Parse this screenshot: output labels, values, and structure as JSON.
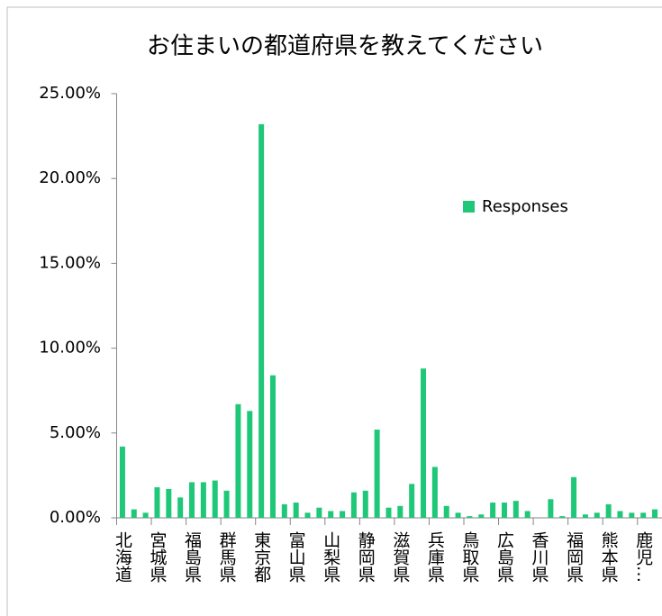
{
  "chart_data": {
    "type": "bar",
    "title": "お住まいの都道府県を教えてください",
    "categories": [
      "北海道",
      null,
      null,
      "宮城県",
      null,
      null,
      "福島県",
      null,
      null,
      "群馬県",
      null,
      null,
      "東京都",
      null,
      null,
      "富山県",
      null,
      null,
      "山梨県",
      null,
      null,
      "静岡県",
      null,
      null,
      "滋賀県",
      null,
      null,
      "兵庫県",
      null,
      null,
      "鳥取県",
      null,
      null,
      "広島県",
      null,
      null,
      "香川県",
      null,
      null,
      "福岡県",
      null,
      null,
      "熊本県",
      null,
      null,
      "鹿児…",
      null
    ],
    "series": [
      {
        "name": "Responses",
        "color": "#1ec878",
        "values": [
          4.2,
          0.5,
          0.3,
          1.8,
          1.7,
          1.2,
          2.1,
          2.1,
          2.2,
          1.6,
          6.7,
          6.3,
          23.2,
          8.4,
          0.8,
          0.9,
          0.3,
          0.6,
          0.4,
          0.4,
          1.5,
          1.6,
          5.2,
          0.6,
          0.7,
          2.0,
          8.8,
          3.0,
          0.7,
          0.3,
          0.1,
          0.2,
          0.9,
          0.9,
          1.0,
          0.4,
          0,
          1.1,
          0.1,
          2.4,
          0.2,
          0.3,
          0.8,
          0.4,
          0.3,
          0.3,
          0.5
        ]
      }
    ],
    "ylim": [
      0,
      25
    ],
    "yticks": [
      {
        "value": 0,
        "label": "0.00%"
      },
      {
        "value": 5,
        "label": "5.00%"
      },
      {
        "value": 10,
        "label": "10.00%"
      },
      {
        "value": 15,
        "label": "15.00%"
      },
      {
        "value": 20,
        "label": "20.00%"
      },
      {
        "value": 25,
        "label": "25.00%"
      }
    ],
    "grid": false,
    "legend": "upper right"
  }
}
